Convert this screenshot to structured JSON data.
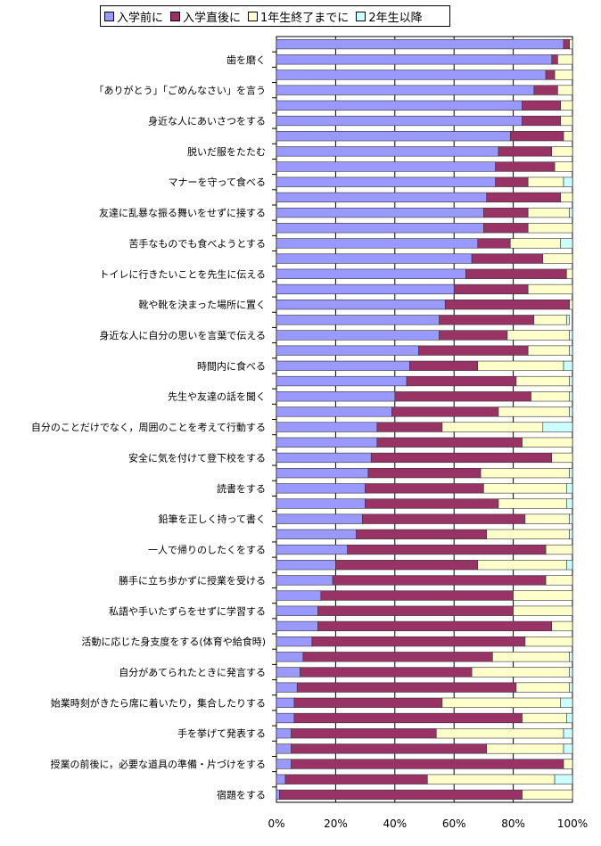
{
  "colors": {
    "before_entry": "#9999ff",
    "right_after_entry": "#993366",
    "end_of_first_year": "#ffffcc",
    "second_year_or_later": "#ccffff",
    "grid": "#000000"
  },
  "legend": [
    {
      "label": "入学前に",
      "color_key": "before_entry"
    },
    {
      "label": "入学直後に",
      "color_key": "right_after_entry"
    },
    {
      "label": "1年生終了までに",
      "color_key": "end_of_first_year"
    },
    {
      "label": "2年生以降",
      "color_key": "second_year_or_later"
    }
  ],
  "chart_data": {
    "type": "bar",
    "orientation": "horizontal",
    "stacked": "percent",
    "title": "",
    "xlabel": "",
    "ylabel": "",
    "xlim": [
      0,
      100
    ],
    "x_ticks": [
      "0%",
      "20%",
      "40%",
      "60%",
      "80%",
      "100%"
    ],
    "grid": true,
    "legend_position": "top",
    "categories": [
      "",
      "歯を磨く",
      "",
      "「ありがとう」「ごめんなさい」を言う",
      "",
      "身近な人にあいさつをする",
      "",
      "脱いだ服をたたむ",
      "",
      "マナーを守って食べる",
      "",
      "友達に乱暴な振る舞いをせずに接する",
      "",
      "苦手なものでも食べようとする",
      "",
      "トイレに行きたいことを先生に伝える",
      "",
      "靴や靴を決まった場所に置く",
      "",
      "身近な人に自分の思いを言葉で伝える",
      "",
      "時間内に食べる",
      "",
      "先生や友達の話を聞く",
      "",
      "自分のことだけでなく，周囲のことを考えて行動する",
      "",
      "安全に気を付けて登下校をする",
      "",
      "読書をする",
      "",
      "鉛筆を正しく持って書く",
      "",
      "一人で帰りのしたくをする",
      "",
      "勝手に立ち歩かずに授業を受ける",
      "",
      "私語や手いたずらをせずに学習する",
      "",
      "活動に応じた身支度をする(体育や給食時)",
      "",
      "自分があてられたときに発言する",
      "",
      "始業時刻がきたら席に着いたり，集合したりする",
      "",
      "手を挙げて発表する",
      "",
      "授業の前後に，必要な道具の準備・片づけをする",
      "",
      "宿題をする"
    ],
    "series": [
      {
        "name": "入学前に",
        "values": [
          97,
          93,
          91,
          87,
          83,
          83,
          79,
          75,
          74,
          74,
          71,
          70,
          70,
          68,
          66,
          64,
          60,
          57,
          55,
          55,
          48,
          45,
          44,
          40,
          39,
          34,
          34,
          32,
          31,
          30,
          30,
          29,
          27,
          24,
          20,
          19,
          15,
          14,
          14,
          12,
          9,
          8,
          7,
          6,
          6,
          5,
          5,
          5,
          3,
          1
        ]
      },
      {
        "name": "入学直後に",
        "values": [
          2,
          2,
          3,
          8,
          13,
          13,
          18,
          18,
          20,
          11,
          25,
          15,
          15,
          11,
          24,
          34,
          25,
          42,
          32,
          23,
          37,
          23,
          37,
          46,
          36,
          22,
          49,
          61,
          38,
          40,
          45,
          55,
          44,
          67,
          48,
          72,
          65,
          66,
          79,
          72,
          64,
          58,
          74,
          50,
          77,
          49,
          66,
          92,
          48,
          82
        ]
      },
      {
        "name": "1年生終了までに",
        "values": [
          1,
          5,
          6,
          5,
          4,
          4,
          3,
          8,
          6,
          12,
          4,
          14,
          15,
          17,
          10,
          3,
          15,
          1,
          11,
          21,
          14,
          29,
          18,
          13,
          24,
          34,
          17,
          7,
          30,
          28,
          23,
          15,
          28,
          9,
          30,
          9,
          20,
          20,
          7,
          19,
          26,
          33,
          18,
          40,
          15,
          43,
          26,
          3,
          43,
          18
        ]
      },
      {
        "name": "2年生以降",
        "values": [
          0,
          0,
          0,
          0,
          0,
          0,
          0,
          0,
          0,
          3,
          0,
          1,
          0,
          4,
          0,
          0,
          0,
          0,
          1,
          1,
          1,
          3,
          1,
          1,
          1,
          10,
          0,
          0,
          1,
          2,
          2,
          1,
          1,
          0,
          2,
          0,
          0,
          0,
          0,
          1,
          1,
          1,
          1,
          4,
          2,
          3,
          3,
          0,
          6,
          0
        ]
      }
    ]
  }
}
